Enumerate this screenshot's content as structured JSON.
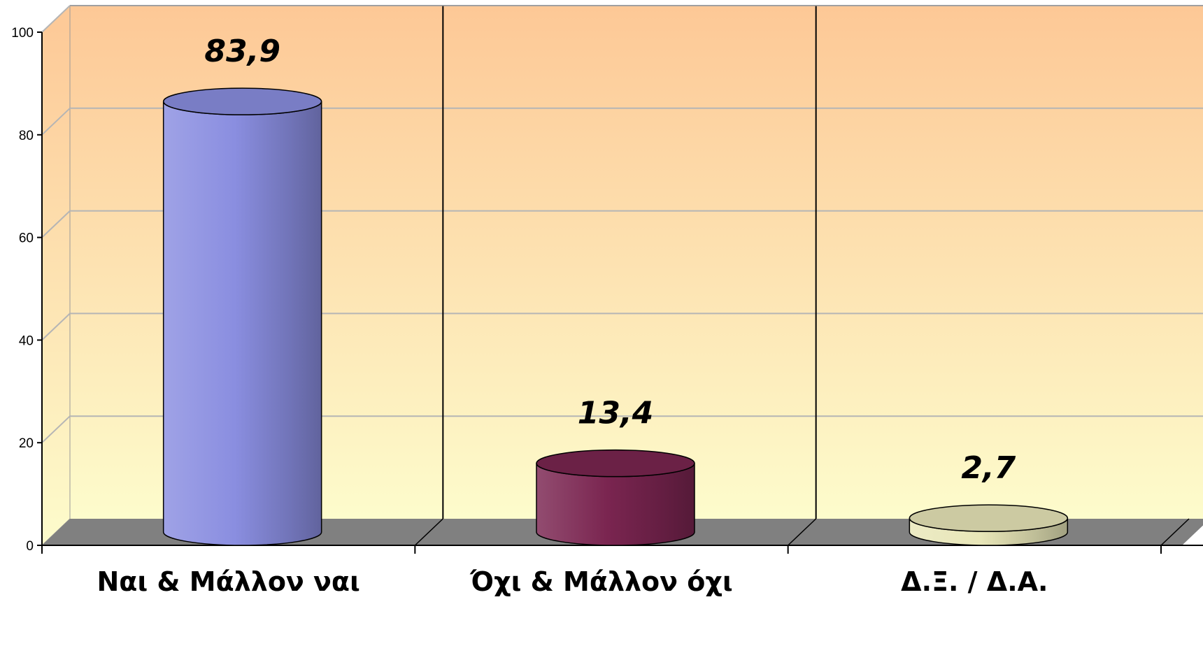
{
  "chart_data": {
    "type": "bar",
    "style": "3d-cylinder",
    "categories": [
      "Ναι & Μάλλον ναι",
      "Όχι & Μάλλον όχι",
      "Δ.Ξ. / Δ.Α."
    ],
    "values": [
      83.9,
      13.4,
      2.7
    ],
    "value_labels": [
      "83,9",
      "13,4",
      "2,7"
    ],
    "colors": [
      "#8a8ee0",
      "#7a2550",
      "#e8e6b8"
    ],
    "ylim": [
      0,
      100
    ],
    "yticks": [
      "0",
      "20",
      "40",
      "60",
      "80",
      "100"
    ],
    "ytick_values": [
      0,
      20,
      40,
      60,
      80,
      100
    ],
    "title": "",
    "xlabel": "",
    "ylabel": "",
    "grid": true,
    "legend": "none",
    "background_gradient": [
      "#fdc896",
      "#fdfccc"
    ],
    "floor_color": "#808080"
  }
}
